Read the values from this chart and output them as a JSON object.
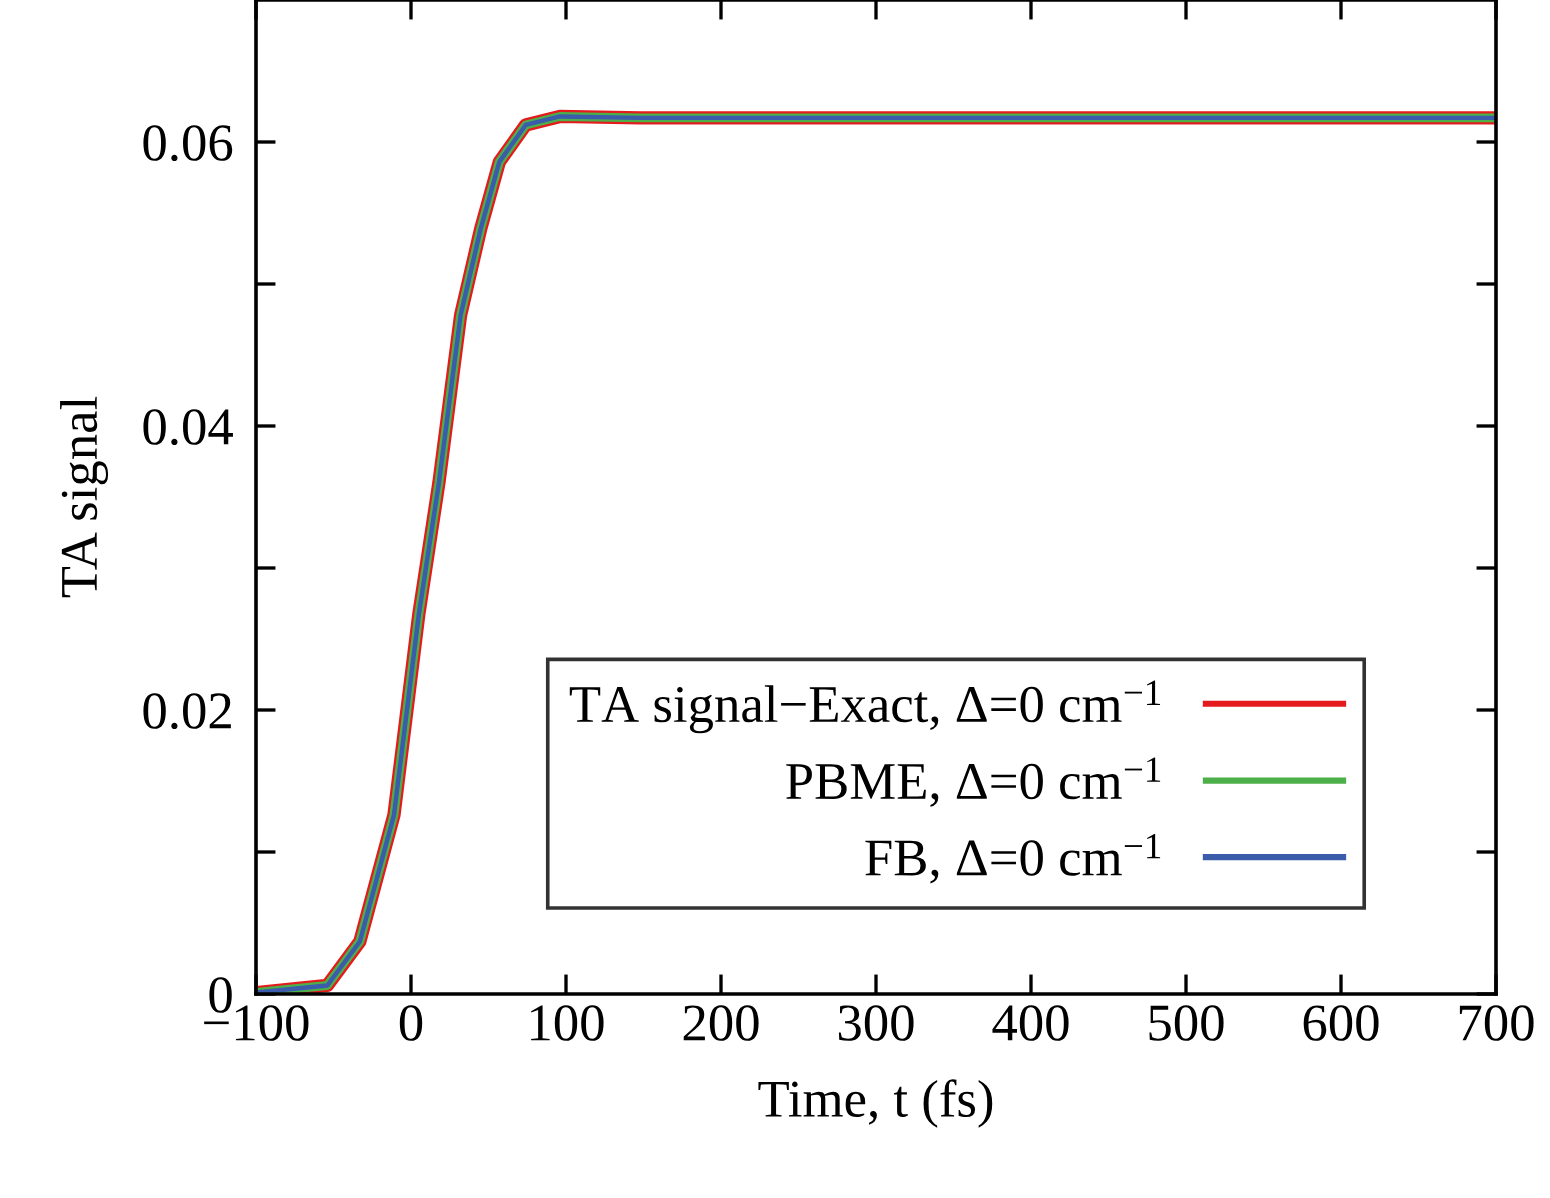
{
  "chart_data": {
    "type": "line",
    "xlabel": "Time, t (fs)",
    "ylabel": "TA signal",
    "xlim": [
      -100,
      700
    ],
    "xticks": [
      -100,
      0,
      100,
      200,
      300,
      400,
      500,
      600,
      700
    ],
    "ylim": [
      0,
      0.07
    ],
    "yticks": [
      0,
      {
        "value": 0.01,
        "label": null
      },
      {
        "value": 0.02,
        "label": "0.02"
      },
      {
        "value": 0.03,
        "label": null
      },
      {
        "value": 0.04,
        "label": "0.04"
      },
      {
        "value": 0.05,
        "label": null
      },
      {
        "value": 0.06,
        "label": "0.06"
      }
    ],
    "x": [
      -100,
      -54,
      -33,
      -11,
      5,
      18,
      32,
      45,
      57,
      74,
      96,
      148,
      200,
      300,
      400,
      500,
      600,
      700
    ],
    "series": [
      {
        "name": "TA signal−Exact, Δ=0 cm$^{−1}$",
        "color": "#e41a1c",
        "values": [
          0.0001,
          0.0006,
          0.0037,
          0.0126,
          0.0267,
          0.036,
          0.0478,
          0.0539,
          0.0586,
          0.0612,
          0.0618,
          0.0617,
          0.0617,
          0.0617,
          0.0617,
          0.0617,
          0.0617,
          0.0617
        ]
      },
      {
        "name": "PBME, Δ=0 cm$^{−1}$",
        "color": "#4daf4a",
        "values": [
          0.0001,
          0.0006,
          0.0037,
          0.0126,
          0.0267,
          0.036,
          0.0478,
          0.0539,
          0.0586,
          0.0612,
          0.0618,
          0.0617,
          0.0617,
          0.0617,
          0.0617,
          0.0617,
          0.0617,
          0.0617
        ]
      },
      {
        "name": "FB, Δ=0 cm$^{−1}$",
        "color": "#3b5bab",
        "values": [
          0.0001,
          0.0006,
          0.0037,
          0.0126,
          0.0267,
          0.036,
          0.0478,
          0.0539,
          0.0586,
          0.0612,
          0.0618,
          0.0617,
          0.0617,
          0.0617,
          0.0617,
          0.0617,
          0.0617,
          0.0617
        ]
      }
    ],
    "legend": "bottom right",
    "grid": false,
    "line_style": "solid",
    "marker": "none"
  }
}
